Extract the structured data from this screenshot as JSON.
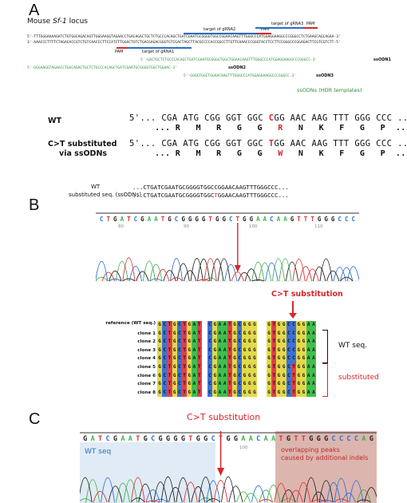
{
  "panel_a": {
    "letter": "A",
    "locus_prefix": "Mouse ",
    "locus_gene": "Sf-1",
    "locus_suffix": " locus",
    "genomic_top": "5'-TTTGGGAAAAGATCTGTGGCAGACAGTTGGGAAGGTAGAACCTGACAGACTGCTCTGCCCACAGCTGATCGAATGCGGGGTGGCCGGAACAAGTTTGGGCCCATGGAGGAAGGCCCGGGCCTCTGAAGCAGCAGAA-3'",
    "genomic_bottom": "3'-AAACCCTTTTCTAGACACCGTCTGTCAACCCTTCCATCTTGGACTGTCTGACGAGACGGGTGTCGACTAGCTTACGCCCCACCGGCCTTGTTCAAACCCGGGTACCTCCTTCCGGGCCCGGAGACTTCGTCGTCTT-5'",
    "target2": "target of gRNA2",
    "target3": "target of gRNA3",
    "target1": "target of gRNA1",
    "pam": "PAM",
    "ssodn1_seq": "5'-GACTGCTCTGCCCACAGCTGATCGAATGCGGGGTGGCTGGAACAAGTTTGGGCCCATGGAGGAAGGCCCGGGCC-3'",
    "ssodn2_seq": "5'-GGGAAGGTAGAACCTGACAGACTGCTCTGCCCACAGCTGATCGAATGCGGGGTGGCTGGAAC-3'",
    "ssodn3_seq": "5'-GGGGTGGCTGGAACAAGTTTGGGCCCATGGAGGAAGGCCCGGGCC-3'",
    "ssodn1": "ssODN1",
    "ssodn2": "ssODN2",
    "ssodn3": "ssODN3",
    "hdr_note": "ssODNs (HDR templates)",
    "wt_label": "WT",
    "sub_label_1": "C>T substituted",
    "sub_label_2": "via ssODNs",
    "wt_seq_pre": "5'... CGA ATG CGG GGT GGC ",
    "wt_seq_mut": "C",
    "wt_seq_post": "GG AAC AAG TTT GGG CCC ...3'",
    "wt_aa_pre": "     ... R   M   R   G   G   ",
    "wt_aa_mut": "R",
    "wt_aa_post": "   N   K   F   G   P  ...",
    "sub_seq_pre": "5'... CGA ATG CGG GGT GGC ",
    "sub_seq_mut": "T",
    "sub_seq_post": "GG AAC AAG TTT GGG CCC ...3'",
    "sub_aa_pre": "     ... R   M   R   G   G   ",
    "sub_aa_mut": "W",
    "sub_aa_post": "   N   K   F   G   P  ..."
  },
  "panel_b": {
    "letter": "B",
    "wt_label": "WT",
    "sub_label": "substituted seq. (ssODNs)",
    "wt_seq": "...CTGATCGAATGCGGGGTGGCCGGAACAAGTTTGGGCCC...",
    "sub_seq_pre": "...CTGATCGAATGCGGGGTGGC",
    "sub_seq_mut": "T",
    "sub_seq_post": "GGAACAAGTTTGGGCCC...",
    "trace_bases": "CTGATCGAATGCGGGGTGGCTGGAACAAGTTTGGGCCC",
    "trace_ticks": [
      "80",
      "90",
      "100",
      "110"
    ],
    "substitution_label": "C>T substitution",
    "reference_label": "reference (WT seq.)",
    "clones": [
      "clone 1",
      "clone 2",
      "clone 3",
      "clone 4",
      "clone 5",
      "clone 6",
      "clone 7",
      "clone 8"
    ],
    "block1": "GCTGCTGAT",
    "block2": "CGAATGCGGG",
    "block3_ref": "GTGGCCGGAA",
    "block3_sub": "GTGGCTGGAA",
    "wt_group": "WT seq.",
    "sub_group": "substituted"
  },
  "panel_c": {
    "letter": "C",
    "substitution_label": "C>T substitution",
    "trace_bases": "GATCGAATGCGGGGTGGCTGGAACAATGTTGGGCCCCAG",
    "tick_100": "100",
    "wt_seq_label": "WT seq",
    "overlap_1": "overlapping peaks",
    "overlap_2": "caused by additional indels"
  },
  "colors": {
    "A": "#3fb34f",
    "C": "#2c6fd6",
    "G": "#222222",
    "T": "#e03030",
    "accent_red": "#d8262a",
    "green_text": "#2e8b3a",
    "blue_bar": "#2b6fc2"
  }
}
